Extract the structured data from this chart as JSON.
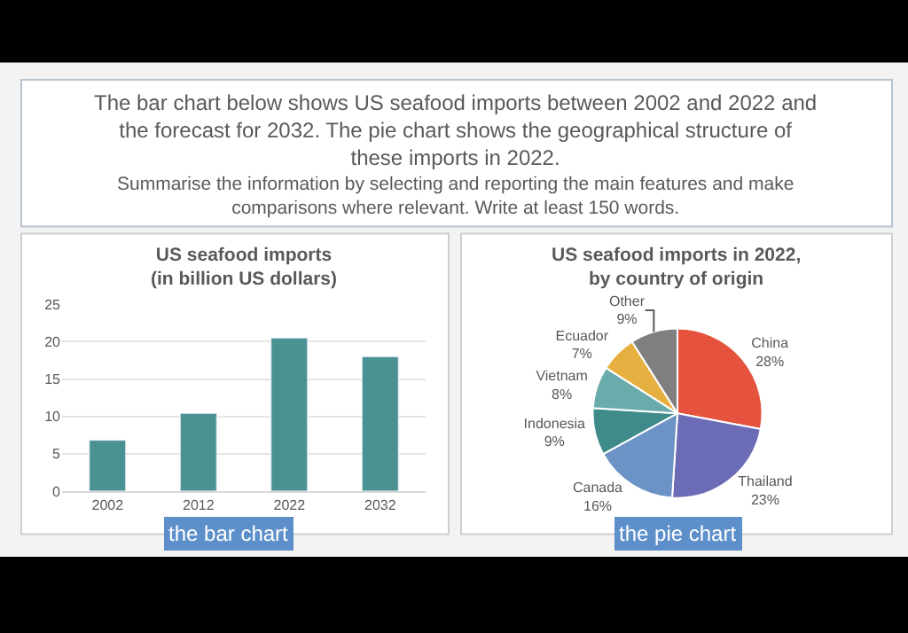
{
  "chart_data": [
    {
      "type": "other",
      "annotations": [
        "The bar chart below shows US seafood imports between 2002 and 2022 and the forecast for 2032. The pie chart shows the geographical structure of these imports in 2022.",
        "Summarise the information by selecting and reporting the main features and make comparisons where relevant. Write at least 150 words."
      ]
    },
    {
      "type": "bar",
      "title": "US seafood imports\n(in billion US dollars)",
      "categories": [
        "2002",
        "2012",
        "2022",
        "2032"
      ],
      "values": [
        6.8,
        10.4,
        20.5,
        18
      ],
      "color": "#4a9292",
      "ylim": [
        0,
        25
      ],
      "yticks": [
        0,
        5,
        10,
        15,
        20,
        25
      ],
      "grid": "y",
      "annotations": [
        "the bar chart"
      ]
    },
    {
      "type": "pie",
      "title": "US seafood imports in 2022,\nby country of origin",
      "categories": [
        "China",
        "Thailand",
        "Canada",
        "Indonesia",
        "Vietnam",
        "Ecuador",
        "Other"
      ],
      "values": [
        28,
        23,
        16,
        9,
        8,
        7,
        9
      ],
      "colors": [
        "#e5533f",
        "#6c6bb6",
        "#6b93c6",
        "#3f8b8a",
        "#6aabab",
        "#e6b040",
        "#7f7f7f"
      ],
      "value_labels": [
        "28%",
        "23%",
        "16%",
        "9%",
        "8%",
        "7%",
        "9%"
      ],
      "annotations": [
        "the pie chart"
      ]
    }
  ]
}
